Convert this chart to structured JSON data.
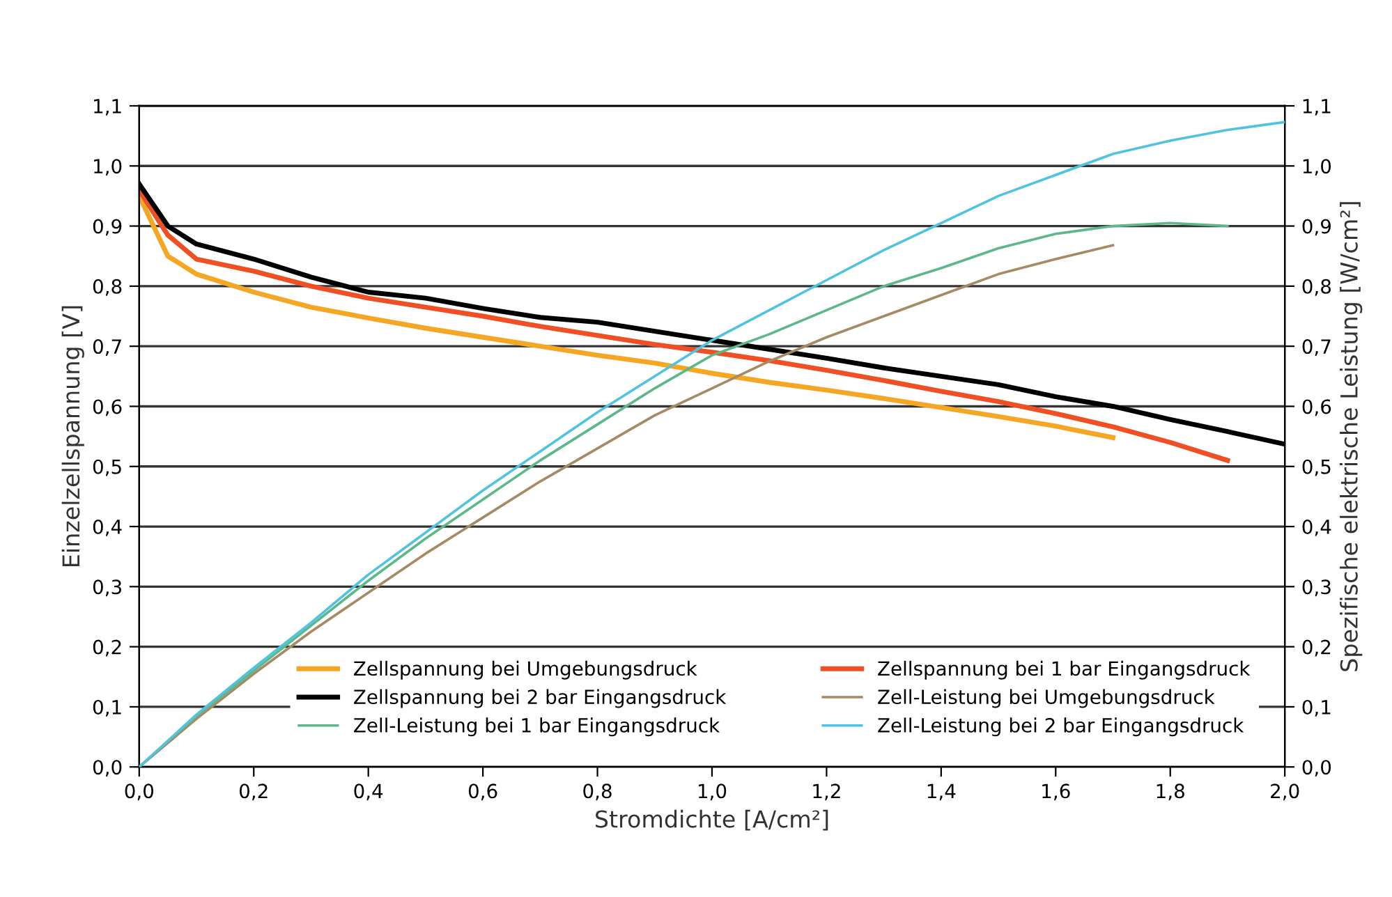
{
  "chart_data": {
    "type": "line",
    "xlabel": "Stromdichte [A/cm²]",
    "ylabel": "Einzelzellspannung [V]",
    "y2label": "Spezifische elektrische Leistung [W/cm²]",
    "xlim": [
      0,
      2.0
    ],
    "ylim": [
      0,
      1.1
    ],
    "y2lim": [
      0,
      1.1
    ],
    "xticks": [
      {
        "value": 0,
        "label": "0,0"
      },
      {
        "value": 0.2,
        "label": "0,2"
      },
      {
        "value": 0.4,
        "label": "0,4"
      },
      {
        "value": 0.6,
        "label": "0,6"
      },
      {
        "value": 0.8,
        "label": "0,8"
      },
      {
        "value": 1.0,
        "label": "1,0"
      },
      {
        "value": 1.2,
        "label": "1,2"
      },
      {
        "value": 1.4,
        "label": "1,4"
      },
      {
        "value": 1.6,
        "label": "1,6"
      },
      {
        "value": 1.8,
        "label": "1,8"
      },
      {
        "value": 2.0,
        "label": "2,0"
      }
    ],
    "yticks": [
      {
        "value": 0,
        "label": "0,0"
      },
      {
        "value": 0.1,
        "label": "0,1"
      },
      {
        "value": 0.2,
        "label": "0,2"
      },
      {
        "value": 0.3,
        "label": "0,3"
      },
      {
        "value": 0.4,
        "label": "0,4"
      },
      {
        "value": 0.5,
        "label": "0,5"
      },
      {
        "value": 0.6,
        "label": "0,6"
      },
      {
        "value": 0.7,
        "label": "0,7"
      },
      {
        "value": 0.8,
        "label": "0,8"
      },
      {
        "value": 0.9,
        "label": "0,9"
      },
      {
        "value": 1.0,
        "label": "1,0"
      },
      {
        "value": 1.1,
        "label": "1,1"
      }
    ],
    "y2ticks": [
      {
        "value": 0,
        "label": "0,0"
      },
      {
        "value": 0.1,
        "label": "0,1"
      },
      {
        "value": 0.2,
        "label": "0,2"
      },
      {
        "value": 0.3,
        "label": "0,3"
      },
      {
        "value": 0.4,
        "label": "0,4"
      },
      {
        "value": 0.5,
        "label": "0,5"
      },
      {
        "value": 0.6,
        "label": "0,6"
      },
      {
        "value": 0.7,
        "label": "0,7"
      },
      {
        "value": 0.8,
        "label": "0,8"
      },
      {
        "value": 0.9,
        "label": "0,9"
      },
      {
        "value": 1.0,
        "label": "1,0"
      },
      {
        "value": 1.1,
        "label": "1,1"
      }
    ],
    "grid": "y",
    "legend": "bottom right",
    "marker": "none",
    "line_style": "solid",
    "series": [
      {
        "name": "Zellspannung bei Umgebungsdruck",
        "color": "#f5a623",
        "x": [
          0,
          0.05,
          0.1,
          0.2,
          0.3,
          0.4,
          0.5,
          0.6,
          0.7,
          0.8,
          0.9,
          1.0,
          1.1,
          1.2,
          1.3,
          1.4,
          1.5,
          1.6,
          1.7
        ],
        "values": [
          0.95,
          0.85,
          0.82,
          0.79,
          0.765,
          0.747,
          0.73,
          0.715,
          0.7,
          0.685,
          0.672,
          0.655,
          0.64,
          0.627,
          0.613,
          0.598,
          0.583,
          0.567,
          0.548
        ]
      },
      {
        "name": "Zellspannung bei 1 bar Eingangsdruck",
        "color": "#f04e23",
        "x": [
          0,
          0.05,
          0.1,
          0.2,
          0.3,
          0.4,
          0.5,
          0.6,
          0.7,
          0.8,
          0.9,
          1.0,
          1.1,
          1.2,
          1.3,
          1.4,
          1.5,
          1.6,
          1.7,
          1.8,
          1.9
        ],
        "values": [
          0.96,
          0.885,
          0.845,
          0.825,
          0.8,
          0.78,
          0.765,
          0.75,
          0.733,
          0.718,
          0.703,
          0.69,
          0.676,
          0.66,
          0.643,
          0.625,
          0.608,
          0.588,
          0.566,
          0.54,
          0.51
        ]
      },
      {
        "name": "Zellspannung bei 2 bar Eingangsdruck",
        "color": "#000000",
        "x": [
          0,
          0.05,
          0.1,
          0.2,
          0.3,
          0.4,
          0.5,
          0.6,
          0.7,
          0.8,
          0.9,
          1.0,
          1.1,
          1.2,
          1.3,
          1.4,
          1.5,
          1.6,
          1.7,
          1.8,
          1.9,
          2.0
        ],
        "values": [
          0.97,
          0.9,
          0.87,
          0.845,
          0.815,
          0.79,
          0.78,
          0.763,
          0.748,
          0.74,
          0.725,
          0.71,
          0.695,
          0.68,
          0.664,
          0.65,
          0.636,
          0.616,
          0.6,
          0.578,
          0.558,
          0.537
        ]
      },
      {
        "name": "Zell-Leistung bei Umgebungsdruck",
        "color": "#a68a64",
        "axis": "y2",
        "x": [
          0,
          0.1,
          0.2,
          0.3,
          0.4,
          0.5,
          0.6,
          0.7,
          0.8,
          0.9,
          1.0,
          1.1,
          1.2,
          1.3,
          1.4,
          1.5,
          1.6,
          1.7
        ],
        "values": [
          0,
          0.08,
          0.155,
          0.225,
          0.29,
          0.355,
          0.415,
          0.475,
          0.53,
          0.585,
          0.63,
          0.675,
          0.715,
          0.75,
          0.785,
          0.82,
          0.845,
          0.868
        ]
      },
      {
        "name": "Zell-Leistung bei 1 bar Eingangsdruck",
        "color": "#5cb88a",
        "axis": "y2",
        "x": [
          0,
          0.1,
          0.2,
          0.3,
          0.4,
          0.5,
          0.6,
          0.7,
          0.8,
          0.9,
          1.0,
          1.1,
          1.2,
          1.3,
          1.4,
          1.5,
          1.6,
          1.7,
          1.8,
          1.9
        ],
        "values": [
          0,
          0.085,
          0.16,
          0.235,
          0.31,
          0.38,
          0.445,
          0.51,
          0.57,
          0.63,
          0.685,
          0.72,
          0.76,
          0.8,
          0.83,
          0.863,
          0.887,
          0.9,
          0.905,
          0.9
        ]
      },
      {
        "name": "Zell-Leistung bei 2 bar Eingangsdruck",
        "color": "#4fc3e0",
        "axis": "y2",
        "x": [
          0,
          0.1,
          0.2,
          0.3,
          0.4,
          0.5,
          0.6,
          0.7,
          0.8,
          0.9,
          1.0,
          1.1,
          1.2,
          1.3,
          1.4,
          1.5,
          1.6,
          1.7,
          1.8,
          1.9,
          2.0
        ],
        "values": [
          0,
          0.087,
          0.165,
          0.24,
          0.32,
          0.39,
          0.46,
          0.525,
          0.59,
          0.65,
          0.71,
          0.76,
          0.81,
          0.86,
          0.905,
          0.95,
          0.985,
          1.02,
          1.042,
          1.06,
          1.073
        ]
      }
    ]
  }
}
